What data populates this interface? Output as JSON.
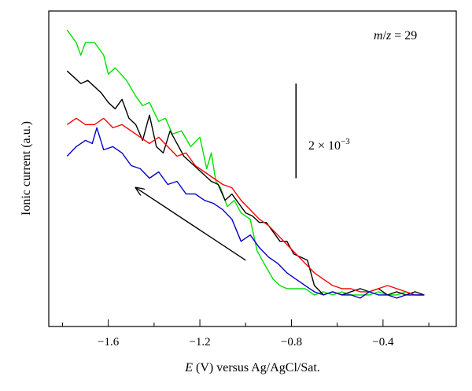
{
  "chart_data": {
    "type": "line",
    "xlabel_var": "E",
    "xlabel_rest": " (V) versus Ag/AgCl/Sat.",
    "ylabel": "Ionic current (a.u.)",
    "xlim": [
      -1.86,
      -0.08
    ],
    "ylim": [
      0,
      1
    ],
    "x_ticks": [
      -1.6,
      -1.2,
      -0.8,
      -0.4
    ],
    "x_tick_labels": [
      "−1.6",
      "−1.2",
      "−0.8",
      "−0.4"
    ],
    "y_ticks_shown": false,
    "grid": false,
    "legend": "none",
    "annotation_mz": {
      "m": "m",
      "slash": "/",
      "z": "z",
      "eq": " = 29"
    },
    "scale_bar": {
      "label_base": "2 × 10",
      "label_exp": "−3",
      "x": -0.78,
      "y_from": 0.47,
      "y_to": 0.77
    },
    "arrow": {
      "from": [
        -1.0,
        0.21
      ],
      "to": [
        -1.48,
        0.44
      ]
    },
    "series": [
      {
        "color": "#00e000",
        "x": [
          -1.78,
          -1.74,
          -1.72,
          -1.7,
          -1.66,
          -1.62,
          -1.6,
          -1.57,
          -1.52,
          -1.48,
          -1.45,
          -1.42,
          -1.38,
          -1.35,
          -1.32,
          -1.28,
          -1.24,
          -1.2,
          -1.17,
          -1.15,
          -1.13,
          -1.11,
          -1.08,
          -1.05,
          -1.02,
          -0.98,
          -0.95,
          -0.92,
          -0.88,
          -0.85,
          -0.82,
          -0.78,
          -0.74,
          -0.7,
          -0.66,
          -0.62,
          -0.58,
          -0.54,
          -0.5,
          -0.46,
          -0.42,
          -0.38,
          -0.34,
          -0.3,
          -0.26,
          -0.22
        ],
        "y": [
          0.94,
          0.9,
          0.86,
          0.9,
          0.9,
          0.86,
          0.8,
          0.82,
          0.78,
          0.73,
          0.7,
          0.71,
          0.65,
          0.66,
          0.61,
          0.62,
          0.57,
          0.6,
          0.5,
          0.55,
          0.46,
          0.44,
          0.38,
          0.4,
          0.36,
          0.34,
          0.24,
          0.2,
          0.15,
          0.13,
          0.12,
          0.12,
          0.12,
          0.1,
          0.11,
          0.1,
          0.11,
          0.1,
          0.1,
          0.1,
          0.11,
          0.1,
          0.1,
          0.11,
          0.1,
          0.1
        ]
      },
      {
        "color": "#000000",
        "x": [
          -1.78,
          -1.75,
          -1.72,
          -1.69,
          -1.66,
          -1.63,
          -1.6,
          -1.57,
          -1.54,
          -1.51,
          -1.48,
          -1.45,
          -1.42,
          -1.39,
          -1.36,
          -1.33,
          -1.3,
          -1.27,
          -1.24,
          -1.21,
          -1.18,
          -1.15,
          -1.12,
          -1.09,
          -1.06,
          -1.03,
          -1.0,
          -0.97,
          -0.94,
          -0.91,
          -0.88,
          -0.85,
          -0.82,
          -0.79,
          -0.76,
          -0.73,
          -0.7,
          -0.66,
          -0.62,
          -0.58,
          -0.54,
          -0.5,
          -0.46,
          -0.42,
          -0.38,
          -0.34,
          -0.3,
          -0.26,
          -0.22
        ],
        "y": [
          0.81,
          0.79,
          0.77,
          0.78,
          0.76,
          0.74,
          0.71,
          0.69,
          0.72,
          0.66,
          0.64,
          0.59,
          0.67,
          0.57,
          0.55,
          0.62,
          0.58,
          0.54,
          0.52,
          0.5,
          0.48,
          0.46,
          0.45,
          0.4,
          0.42,
          0.39,
          0.36,
          0.35,
          0.33,
          0.33,
          0.3,
          0.27,
          0.27,
          0.23,
          0.22,
          0.21,
          0.13,
          0.1,
          0.11,
          0.1,
          0.11,
          0.12,
          0.11,
          0.12,
          0.1,
          0.11,
          0.1,
          0.11,
          0.1
        ]
      },
      {
        "color": "#ff0000",
        "x": [
          -1.78,
          -1.74,
          -1.7,
          -1.66,
          -1.62,
          -1.58,
          -1.54,
          -1.5,
          -1.46,
          -1.42,
          -1.38,
          -1.34,
          -1.3,
          -1.26,
          -1.22,
          -1.18,
          -1.14,
          -1.1,
          -1.06,
          -1.02,
          -0.98,
          -0.94,
          -0.9,
          -0.86,
          -0.82,
          -0.78,
          -0.74,
          -0.7,
          -0.66,
          -0.62,
          -0.58,
          -0.54,
          -0.5,
          -0.46,
          -0.42,
          -0.38,
          -0.34,
          -0.3,
          -0.26,
          -0.22
        ],
        "y": [
          0.64,
          0.66,
          0.64,
          0.64,
          0.66,
          0.63,
          0.64,
          0.62,
          0.6,
          0.58,
          0.6,
          0.57,
          0.54,
          0.55,
          0.51,
          0.49,
          0.47,
          0.45,
          0.44,
          0.4,
          0.37,
          0.34,
          0.32,
          0.29,
          0.26,
          0.23,
          0.2,
          0.17,
          0.15,
          0.13,
          0.12,
          0.12,
          0.11,
          0.11,
          0.12,
          0.13,
          0.12,
          0.11,
          0.1,
          0.1
        ]
      },
      {
        "color": "#0000cc",
        "x": [
          -1.78,
          -1.74,
          -1.7,
          -1.67,
          -1.65,
          -1.62,
          -1.58,
          -1.54,
          -1.5,
          -1.46,
          -1.42,
          -1.38,
          -1.34,
          -1.3,
          -1.26,
          -1.22,
          -1.18,
          -1.14,
          -1.1,
          -1.06,
          -1.02,
          -0.98,
          -0.94,
          -0.9,
          -0.86,
          -0.82,
          -0.78,
          -0.74,
          -0.7,
          -0.66,
          -0.62,
          -0.58,
          -0.54,
          -0.5,
          -0.46,
          -0.42,
          -0.38,
          -0.34,
          -0.3,
          -0.26,
          -0.22
        ],
        "y": [
          0.54,
          0.57,
          0.59,
          0.58,
          0.63,
          0.56,
          0.57,
          0.55,
          0.51,
          0.5,
          0.47,
          0.49,
          0.45,
          0.46,
          0.42,
          0.42,
          0.4,
          0.39,
          0.37,
          0.34,
          0.27,
          0.29,
          0.25,
          0.22,
          0.2,
          0.17,
          0.15,
          0.13,
          0.11,
          0.1,
          0.11,
          0.1,
          0.1,
          0.09,
          0.11,
          0.1,
          0.1,
          0.09,
          0.1,
          0.1,
          0.1
        ]
      }
    ]
  }
}
